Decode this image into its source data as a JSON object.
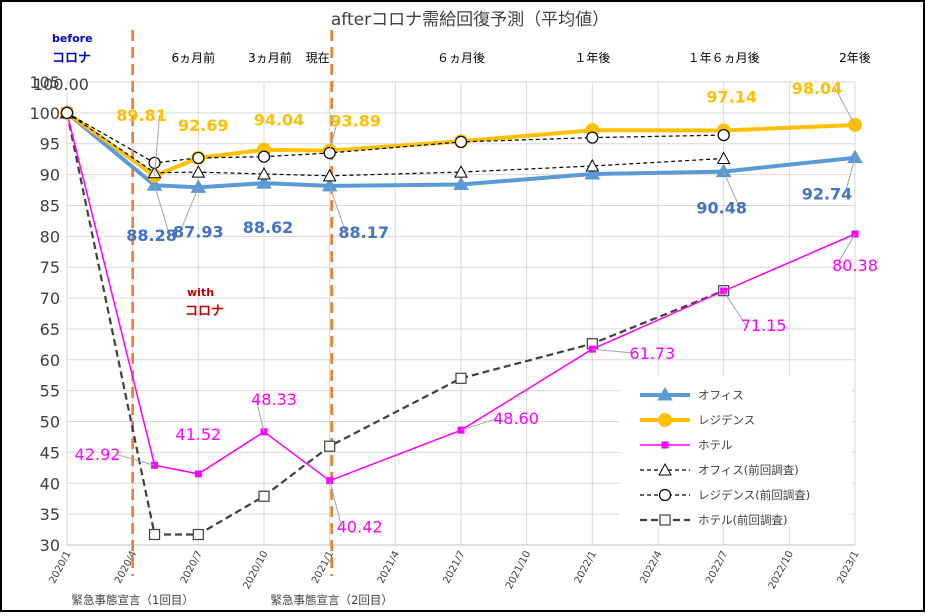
{
  "chart_data": {
    "type": "line",
    "title": "afterコロナ需給回復予測（平均値）",
    "ylim": [
      30,
      105
    ],
    "yticks": [
      30,
      35,
      40,
      45,
      50,
      55,
      60,
      65,
      70,
      75,
      80,
      85,
      90,
      95,
      100,
      105
    ],
    "xticks": [
      "2020/1",
      "2020/4",
      "2020/7",
      "2020/10",
      "2021/1",
      "2021/4",
      "2021/7",
      "2021/10",
      "2022/1",
      "2022/4",
      "2022/7",
      "2022/10",
      "2023/1"
    ],
    "grid": true,
    "legend_position": "bottom-right",
    "period_labels": [
      {
        "text": "6ヵ月前",
        "x": "2020/7"
      },
      {
        "text": "3ヵ月前",
        "x": "2020/10"
      },
      {
        "text": "現在",
        "x": "2021/1"
      },
      {
        "text": "６ヵ月後",
        "x": "2021/7"
      },
      {
        "text": "１年後",
        "x": "2022/1"
      },
      {
        "text": "１年６ヵ月後",
        "x": "2022/7"
      },
      {
        "text": "2年後",
        "x": "2023/1"
      }
    ],
    "vlines": [
      {
        "x": "2020/4",
        "label": "緊急事態宣言（1回目）",
        "color": "#ed7d31"
      },
      {
        "x": "2021/1",
        "label": "緊急事態宣言（2回目）",
        "color": "#ed7d31"
      }
    ],
    "region_labels": {
      "before_line1": "before",
      "before_line2": "コロナ",
      "with_line1": "with",
      "with_line2": "コロナ"
    },
    "series": [
      {
        "name": "オフィス",
        "color": "#5b9bd5",
        "label_color": "#4472c4",
        "marker": "triangle",
        "dash": "solid",
        "points": [
          [
            "2020/1",
            100.0
          ],
          [
            "2020/5",
            88.28
          ],
          [
            "2020/7",
            87.93
          ],
          [
            "2020/10",
            88.62
          ],
          [
            "2021/1",
            88.17
          ],
          [
            "2021/7",
            88.4
          ],
          [
            "2022/1",
            90.1
          ],
          [
            "2022/7",
            90.48
          ],
          [
            "2023/1",
            92.74
          ]
        ],
        "labels": [
          "",
          "88.28",
          "87.93",
          "88.62",
          "88.17",
          "",
          "",
          "90.48",
          "92.74"
        ]
      },
      {
        "name": "レジデンス",
        "color": "#ffc000",
        "label_color": "#ffc000",
        "marker": "circle",
        "dash": "solid",
        "points": [
          [
            "2020/1",
            100.0
          ],
          [
            "2020/5",
            89.81
          ],
          [
            "2020/7",
            92.69
          ],
          [
            "2020/10",
            94.04
          ],
          [
            "2021/1",
            93.89
          ],
          [
            "2021/7",
            95.4
          ],
          [
            "2022/1",
            97.2
          ],
          [
            "2022/7",
            97.14
          ],
          [
            "2023/1",
            98.04
          ]
        ],
        "labels": [
          "100.00",
          "89.81",
          "92.69",
          "94.04",
          "93.89",
          "",
          "",
          "97.14",
          "98.04"
        ]
      },
      {
        "name": "ホテル",
        "color": "#ff00ff",
        "label_color": "#ff00ff",
        "marker": "square",
        "dash": "solid",
        "points": [
          [
            "2020/1",
            100.0
          ],
          [
            "2020/5",
            42.92
          ],
          [
            "2020/7",
            41.52
          ],
          [
            "2020/10",
            48.33
          ],
          [
            "2021/1",
            40.42
          ],
          [
            "2021/7",
            48.6
          ],
          [
            "2022/1",
            61.73
          ],
          [
            "2022/7",
            71.15
          ],
          [
            "2023/1",
            80.38
          ]
        ],
        "labels": [
          "",
          "42.92",
          "",
          "48.33",
          "40.42",
          "48.60",
          "61.73",
          "71.15",
          "80.38"
        ]
      },
      {
        "name": "オフィス(前回調査)",
        "color": "#000000",
        "marker": "triangle-open",
        "dash": "dash",
        "points": [
          [
            "2020/1",
            100.0
          ],
          [
            "2020/5",
            90.3
          ],
          [
            "2020/7",
            90.4
          ],
          [
            "2020/10",
            90.1
          ],
          [
            "2021/1",
            89.8
          ],
          [
            "2021/7",
            90.4
          ],
          [
            "2022/1",
            91.4
          ],
          [
            "2022/7",
            92.6
          ]
        ]
      },
      {
        "name": "レジデンス(前回調査)",
        "color": "#000000",
        "marker": "circle-open",
        "dash": "dash",
        "points": [
          [
            "2020/1",
            100.0
          ],
          [
            "2020/5",
            91.9
          ],
          [
            "2020/7",
            92.7
          ],
          [
            "2020/10",
            92.9
          ],
          [
            "2021/1",
            93.5
          ],
          [
            "2021/7",
            95.3
          ],
          [
            "2022/1",
            96.0
          ],
          [
            "2022/7",
            96.4
          ]
        ]
      },
      {
        "name": "ホテル(前回調査)",
        "color": "#404040",
        "marker": "square-open",
        "dash": "dash-bold",
        "points": [
          [
            "2020/1",
            100.0
          ],
          [
            "2020/5",
            31.7
          ],
          [
            "2020/7",
            31.7
          ],
          [
            "2020/10",
            37.9
          ],
          [
            "2021/1",
            46.0
          ],
          [
            "2021/7",
            57.0
          ],
          [
            "2022/1",
            62.6
          ],
          [
            "2022/7",
            71.2
          ]
        ]
      }
    ],
    "extra_text": {
      "res_label_41_52": "41.52"
    }
  }
}
